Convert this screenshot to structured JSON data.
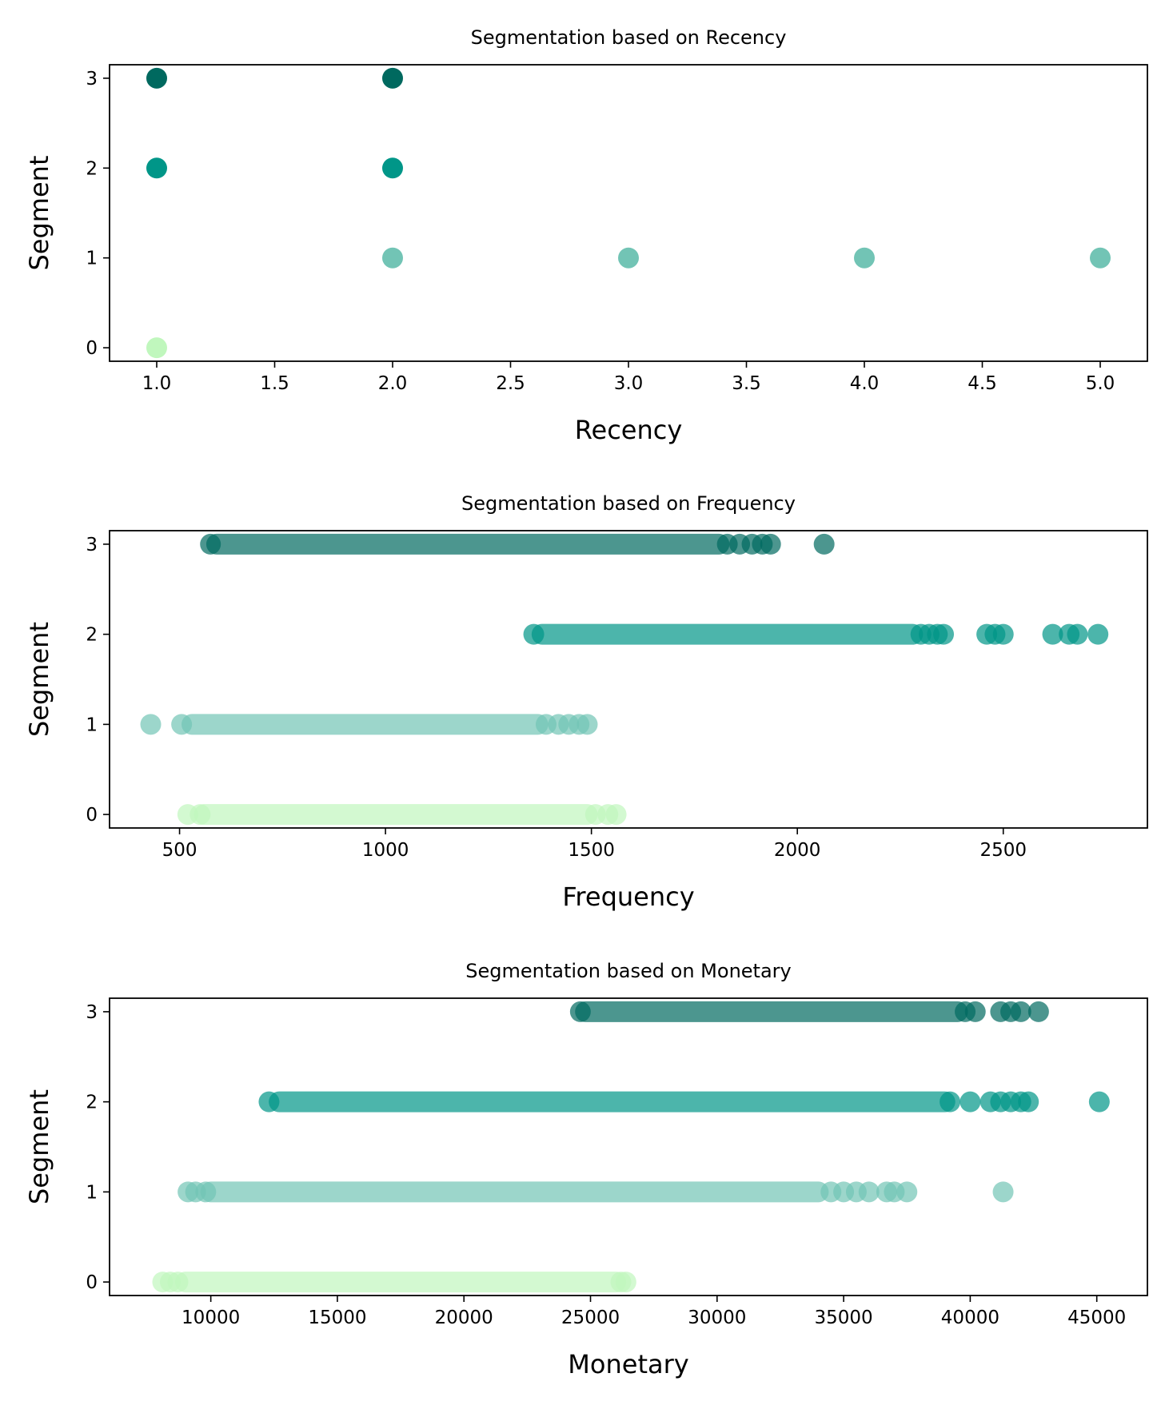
{
  "chart_data": [
    {
      "type": "scatter",
      "title": "Segmentation based on Recency",
      "xlabel": "Recency",
      "ylabel": "Segment",
      "xlim": [
        0.8,
        5.2
      ],
      "ylim": [
        -0.15,
        3.15
      ],
      "xticks": [
        1.0,
        1.5,
        2.0,
        2.5,
        3.0,
        3.5,
        4.0,
        4.5,
        5.0
      ],
      "xtick_labels": [
        "1.0",
        "1.5",
        "2.0",
        "2.5",
        "3.0",
        "3.5",
        "4.0",
        "4.5",
        "5.0"
      ],
      "yticks": [
        0,
        1,
        2,
        3
      ],
      "ytick_labels": [
        "0",
        "1",
        "2",
        "3"
      ],
      "grid": false,
      "legend": "none",
      "marker_opacity": 1.0,
      "series": [
        {
          "segment": 0,
          "color": "#c0f7bd",
          "ranges": [],
          "x": [
            1
          ]
        },
        {
          "segment": 1,
          "color": "#72c4b5",
          "ranges": [],
          "x": [
            2,
            3,
            4,
            5
          ]
        },
        {
          "segment": 2,
          "color": "#009688",
          "ranges": [],
          "x": [
            1,
            2
          ]
        },
        {
          "segment": 3,
          "color": "#00695f",
          "ranges": [],
          "x": [
            1,
            2
          ]
        }
      ]
    },
    {
      "type": "scatter",
      "title": "Segmentation based on Frequency",
      "xlabel": "Frequency",
      "ylabel": "Segment",
      "xlim": [
        330,
        2850
      ],
      "ylim": [
        -0.15,
        3.15
      ],
      "xticks": [
        500,
        1000,
        1500,
        2000,
        2500
      ],
      "xtick_labels": [
        "500",
        "1000",
        "1500",
        "2000",
        "2500"
      ],
      "yticks": [
        0,
        1,
        2,
        3
      ],
      "ytick_labels": [
        "0",
        "1",
        "2",
        "3"
      ],
      "grid": false,
      "legend": "none",
      "marker_opacity": 0.7,
      "series": [
        {
          "segment": 0,
          "color": "#c0f7bd",
          "ranges": [
            [
              560,
              1490
            ]
          ],
          "x": [
            520,
            550,
            1510,
            1540,
            1560
          ]
        },
        {
          "segment": 1,
          "color": "#72c4b5",
          "ranges": [
            [
              530,
              1370
            ]
          ],
          "x": [
            430,
            505,
            1390,
            1420,
            1445,
            1470,
            1490
          ]
        },
        {
          "segment": 2,
          "color": "#009688",
          "ranges": [
            [
              1380,
              2280
            ]
          ],
          "x": [
            1360,
            2300,
            2320,
            2340,
            2355,
            2460,
            2480,
            2500,
            2620,
            2660,
            2680,
            2730
          ]
        },
        {
          "segment": 3,
          "color": "#00695f",
          "ranges": [
            [
              590,
              1810
            ]
          ],
          "x": [
            575,
            1830,
            1860,
            1890,
            1915,
            1935,
            2065
          ]
        }
      ]
    },
    {
      "type": "scatter",
      "title": "Segmentation based on Monetary",
      "xlabel": "Monetary",
      "ylabel": "Segment",
      "xlim": [
        6000,
        47000
      ],
      "ylim": [
        -0.15,
        3.15
      ],
      "xticks": [
        10000,
        15000,
        20000,
        25000,
        30000,
        35000,
        40000,
        45000
      ],
      "xtick_labels": [
        "10000",
        "15000",
        "20000",
        "25000",
        "30000",
        "35000",
        "40000",
        "45000"
      ],
      "yticks": [
        0,
        1,
        2,
        3
      ],
      "ytick_labels": [
        "0",
        "1",
        "2",
        "3"
      ],
      "grid": false,
      "legend": "none",
      "marker_opacity": 0.7,
      "series": [
        {
          "segment": 0,
          "color": "#c0f7bd",
          "ranges": [
            [
              9000,
              26000
            ]
          ],
          "x": [
            8100,
            8400,
            8700,
            26200,
            26400
          ]
        },
        {
          "segment": 1,
          "color": "#72c4b5",
          "ranges": [
            [
              10000,
              34000
            ]
          ],
          "x": [
            9100,
            9400,
            9800,
            34500,
            35000,
            35500,
            36000,
            36700,
            37000,
            37500,
            41300
          ]
        },
        {
          "segment": 2,
          "color": "#009688",
          "ranges": [
            [
              12700,
              39000
            ]
          ],
          "x": [
            12300,
            39200,
            40000,
            40800,
            41200,
            41600,
            42000,
            42300,
            45100
          ]
        },
        {
          "segment": 3,
          "color": "#00695f",
          "ranges": [
            [
              24800,
              39500
            ]
          ],
          "x": [
            24600,
            39800,
            40200,
            41200,
            41600,
            42000,
            42700
          ]
        }
      ]
    }
  ]
}
